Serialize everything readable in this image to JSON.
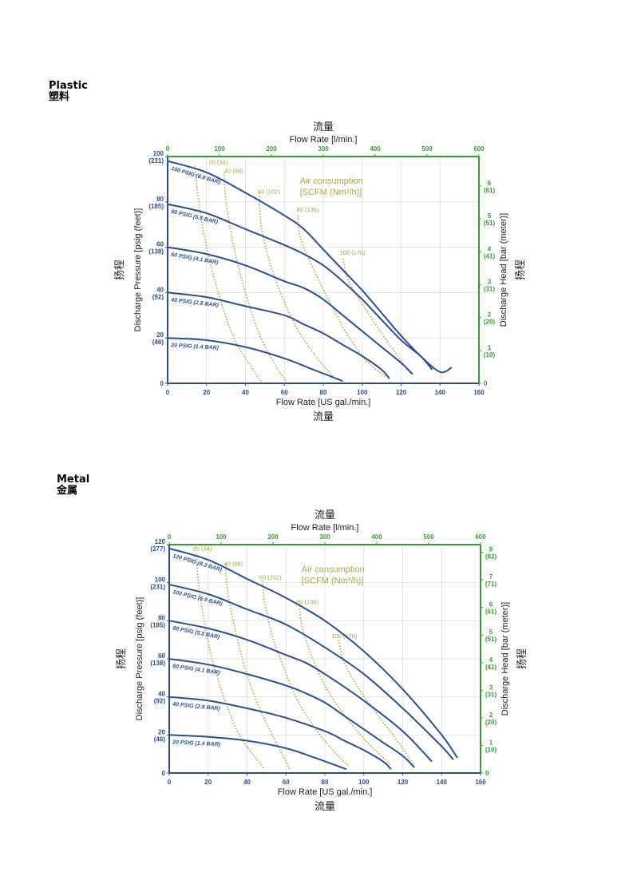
{
  "sections": [
    {
      "title_en": "Plastic",
      "title_zh": "塑料"
    },
    {
      "title_en": "Metal",
      "title_zh": "金属"
    }
  ],
  "colors": {
    "blue": "#2d4f8e",
    "green": "#3a9a3a",
    "olive": "#a8a84a",
    "grid": "#d8d8d8"
  },
  "chart_data": [
    {
      "type": "line",
      "top_label_zh": "流量",
      "top_label": "Flow Rate  [l/min.]",
      "top_ticks": [
        "0",
        "100",
        "200",
        "300",
        "400",
        "500",
        "600"
      ],
      "xlabel": "Flow Rate [US gal./min.]",
      "xlabel_zh": "流量",
      "ylabel": "Discharge Pressure [psig (feet)]",
      "ylabel_zh": "扬程",
      "y2label": "Discharge Head [bar (meter)]",
      "y2label_zh": "扬程",
      "xlim": [
        0,
        160
      ],
      "ylim": [
        0,
        100
      ],
      "x_ticks": [
        "0",
        "20",
        "40",
        "60",
        "80",
        "100",
        "120",
        "140",
        "160"
      ],
      "y_ticks": [
        {
          "v": 0,
          "a": "0",
          "b": ""
        },
        {
          "v": 20,
          "a": "20",
          "b": "(46)"
        },
        {
          "v": 40,
          "a": "40",
          "b": "(92)"
        },
        {
          "v": 60,
          "a": "60",
          "b": "(138)"
        },
        {
          "v": 80,
          "a": "80",
          "b": "(185)"
        },
        {
          "v": 100,
          "a": "100",
          "b": "(231)"
        }
      ],
      "y2_ticks": [
        {
          "v": 0,
          "a": "0",
          "b": ""
        },
        {
          "v": 14.5,
          "a": "1",
          "b": "(10)"
        },
        {
          "v": 29,
          "a": "2",
          "b": "(20)"
        },
        {
          "v": 43.5,
          "a": "3",
          "b": "(31)"
        },
        {
          "v": 58,
          "a": "4",
          "b": "(41)"
        },
        {
          "v": 72.5,
          "a": "5",
          "b": "(51)"
        },
        {
          "v": 87,
          "a": "6",
          "b": "(61)"
        }
      ],
      "air_title": "Air consumption",
      "air_subtitle": "[SCFM (Nm³/h)]",
      "series": [
        {
          "name": "100 PSIG (6.9 BAR)",
          "points": [
            [
              0,
              98
            ],
            [
              20,
              93
            ],
            [
              40,
              84
            ],
            [
              60,
              74
            ],
            [
              70,
              68
            ],
            [
              80,
              59
            ],
            [
              90,
              50
            ],
            [
              100,
              41
            ],
            [
              110,
              31
            ],
            [
              120,
              21
            ],
            [
              130,
              12
            ],
            [
              140,
              5
            ],
            [
              146,
              7
            ]
          ]
        },
        {
          "name": "80 PSIG (5.5 BAR)",
          "points": [
            [
              0,
              79
            ],
            [
              20,
              75
            ],
            [
              40,
              68
            ],
            [
              60,
              61
            ],
            [
              70,
              57
            ],
            [
              80,
              52
            ],
            [
              90,
              45
            ],
            [
              100,
              37
            ],
            [
              110,
              28
            ],
            [
              120,
              19
            ],
            [
              130,
              12
            ],
            [
              136,
              6
            ]
          ]
        },
        {
          "name": "60 PSIG (4.1 BAR)",
          "points": [
            [
              0,
              60
            ],
            [
              20,
              57
            ],
            [
              40,
              52
            ],
            [
              60,
              45
            ],
            [
              70,
              42
            ],
            [
              80,
              37
            ],
            [
              90,
              30
            ],
            [
              100,
              23
            ],
            [
              110,
              16
            ],
            [
              120,
              9
            ],
            [
              126,
              4
            ]
          ]
        },
        {
          "name": "40 PSIG (2.8 BAR)",
          "points": [
            [
              0,
              40
            ],
            [
              20,
              38
            ],
            [
              40,
              34
            ],
            [
              60,
              30
            ],
            [
              70,
              26
            ],
            [
              80,
              22
            ],
            [
              90,
              17
            ],
            [
              100,
              12
            ],
            [
              110,
              6
            ],
            [
              114,
              2
            ]
          ]
        },
        {
          "name": "20 PSIG (1.4 BAR)",
          "points": [
            [
              0,
              20
            ],
            [
              20,
              19
            ],
            [
              40,
              16
            ],
            [
              60,
              11
            ],
            [
              75,
              6
            ],
            [
              90,
              1
            ]
          ]
        }
      ],
      "air_curves": [
        {
          "label": "20 (34)",
          "label_at": [
            26,
            96
          ],
          "points": [
            [
              14,
              96
            ],
            [
              16,
              80
            ],
            [
              20,
              60
            ],
            [
              26,
              40
            ],
            [
              34,
              20
            ],
            [
              44,
              6
            ],
            [
              48,
              1
            ]
          ]
        },
        {
          "label": "40 (68)",
          "label_at": [
            34,
            92
          ],
          "points": [
            [
              29,
              93
            ],
            [
              30,
              80
            ],
            [
              34,
              60
            ],
            [
              40,
              40
            ],
            [
              47,
              22
            ],
            [
              56,
              7
            ],
            [
              61,
              1
            ]
          ]
        },
        {
          "label": "60 (102)",
          "label_at": [
            52,
            83
          ],
          "points": [
            [
              47,
              84
            ],
            [
              48,
              70
            ],
            [
              52,
              55
            ],
            [
              58,
              40
            ],
            [
              66,
              25
            ],
            [
              76,
              12
            ],
            [
              85,
              3
            ]
          ]
        },
        {
          "label": "80 (136)",
          "label_at": [
            72,
            75
          ],
          "points": [
            [
              67,
              74
            ],
            [
              68,
              65
            ],
            [
              74,
              52
            ],
            [
              82,
              38
            ],
            [
              92,
              22
            ],
            [
              102,
              10
            ],
            [
              112,
              3
            ]
          ]
        },
        {
          "label": "100 (170)",
          "label_at": [
            95,
            56
          ],
          "points": [
            [
              90,
              55
            ],
            [
              93,
              45
            ],
            [
              100,
              35
            ],
            [
              110,
              22
            ],
            [
              120,
              10
            ],
            [
              125,
              4
            ]
          ]
        }
      ]
    },
    {
      "type": "line",
      "top_label_zh": "流量",
      "top_label": "Flow Rate  [l/min.]",
      "top_ticks": [
        "0",
        "100",
        "200",
        "300",
        "400",
        "500",
        "600"
      ],
      "xlabel": "Flow Rate [US gal./min.]",
      "xlabel_zh": "流量",
      "ylabel": "Discharge Pressure [psig (feet)]",
      "ylabel_zh": "扬程",
      "y2label": "Discharge Head [bar (meter)]",
      "y2label_zh": "扬程",
      "xlim": [
        0,
        160
      ],
      "ylim": [
        0,
        120
      ],
      "x_ticks": [
        "0",
        "20",
        "40",
        "60",
        "80",
        "100",
        "120",
        "140",
        "160"
      ],
      "y_ticks": [
        {
          "v": 0,
          "a": "0",
          "b": ""
        },
        {
          "v": 20,
          "a": "20",
          "b": "(46)"
        },
        {
          "v": 40,
          "a": "40",
          "b": "(92)"
        },
        {
          "v": 60,
          "a": "60",
          "b": "(138)"
        },
        {
          "v": 80,
          "a": "80",
          "b": "(185)"
        },
        {
          "v": 100,
          "a": "100",
          "b": "(231)"
        },
        {
          "v": 120,
          "a": "120",
          "b": "(277)"
        }
      ],
      "y2_ticks": [
        {
          "v": 0,
          "a": "0",
          "b": ""
        },
        {
          "v": 14.5,
          "a": "1",
          "b": "(10)"
        },
        {
          "v": 29,
          "a": "2",
          "b": "(20)"
        },
        {
          "v": 43.5,
          "a": "3",
          "b": "(31)"
        },
        {
          "v": 58,
          "a": "4",
          "b": "(41)"
        },
        {
          "v": 72.5,
          "a": "5",
          "b": "(51)"
        },
        {
          "v": 87,
          "a": "6",
          "b": "(61)"
        },
        {
          "v": 101.5,
          "a": "7",
          "b": "(71)"
        },
        {
          "v": 116,
          "a": "8",
          "b": "(82)"
        }
      ],
      "air_title": "Air consumption",
      "air_subtitle": "[SCFM (Nm³/h)]",
      "series": [
        {
          "name": "120 PSIG (8.3 BAR)",
          "points": [
            [
              0,
              118
            ],
            [
              20,
              112
            ],
            [
              40,
              102
            ],
            [
              60,
              92
            ],
            [
              80,
              80
            ],
            [
              100,
              64
            ],
            [
              120,
              44
            ],
            [
              140,
              20
            ],
            [
              148,
              8
            ]
          ]
        },
        {
          "name": "100 PSIG (6.9 BAR)",
          "points": [
            [
              0,
              99
            ],
            [
              20,
              94
            ],
            [
              40,
              86
            ],
            [
              60,
              78
            ],
            [
              80,
              66
            ],
            [
              100,
              52
            ],
            [
              120,
              34
            ],
            [
              140,
              14
            ],
            [
              146,
              7
            ]
          ]
        },
        {
          "name": "80 PSIG (5.5 BAR)",
          "points": [
            [
              0,
              80
            ],
            [
              20,
              76
            ],
            [
              40,
              70
            ],
            [
              60,
              62
            ],
            [
              70,
              58
            ],
            [
              80,
              52
            ],
            [
              100,
              38
            ],
            [
              120,
              22
            ],
            [
              135,
              6
            ]
          ]
        },
        {
          "name": "60 PSIG (4.1 BAR)",
          "points": [
            [
              0,
              60
            ],
            [
              20,
              57
            ],
            [
              40,
              52
            ],
            [
              60,
              46
            ],
            [
              70,
              42
            ],
            [
              80,
              37
            ],
            [
              90,
              30
            ],
            [
              100,
              23
            ],
            [
              110,
              16
            ],
            [
              120,
              9
            ],
            [
              126,
              3
            ]
          ]
        },
        {
          "name": "40 PSIG (2.8 BAR)",
          "points": [
            [
              0,
              40
            ],
            [
              20,
              38
            ],
            [
              40,
              34
            ],
            [
              60,
              29
            ],
            [
              80,
              22
            ],
            [
              90,
              17
            ],
            [
              100,
              12
            ],
            [
              110,
              6
            ],
            [
              114,
              2
            ]
          ]
        },
        {
          "name": "20 PSIG (1.4 BAR)",
          "points": [
            [
              0,
              20
            ],
            [
              20,
              19
            ],
            [
              40,
              17
            ],
            [
              60,
              13
            ],
            [
              75,
              8
            ],
            [
              91,
              2
            ]
          ]
        }
      ],
      "air_curves": [
        {
          "label": "20 (34)",
          "label_at": [
            17,
            116
          ],
          "points": [
            [
              14,
              114
            ],
            [
              15,
              100
            ],
            [
              18,
              80
            ],
            [
              22,
              60
            ],
            [
              28,
              40
            ],
            [
              36,
              20
            ],
            [
              46,
              6
            ],
            [
              49,
              2
            ]
          ]
        },
        {
          "label": "40 (68)",
          "label_at": [
            33,
            108
          ],
          "points": [
            [
              29,
              110
            ],
            [
              30,
              95
            ],
            [
              34,
              75
            ],
            [
              39,
              55
            ],
            [
              46,
              35
            ],
            [
              54,
              18
            ],
            [
              60,
              6
            ],
            [
              62,
              2
            ]
          ]
        },
        {
          "label": "60 (102)",
          "label_at": [
            52,
            101
          ],
          "points": [
            [
              48,
              101
            ],
            [
              49,
              90
            ],
            [
              53,
              72
            ],
            [
              59,
              55
            ],
            [
              66,
              38
            ],
            [
              76,
              22
            ],
            [
              86,
              10
            ],
            [
              92,
              4
            ]
          ]
        },
        {
          "label": "80 (136)",
          "label_at": [
            71,
            88
          ],
          "points": [
            [
              67,
              88
            ],
            [
              68,
              78
            ],
            [
              73,
              62
            ],
            [
              80,
              46
            ],
            [
              89,
              32
            ],
            [
              100,
              18
            ],
            [
              108,
              10
            ],
            [
              114,
              4
            ]
          ]
        },
        {
          "label": "100 (170)",
          "label_at": [
            90,
            70
          ],
          "points": [
            [
              87,
              70
            ],
            [
              90,
              58
            ],
            [
              97,
              45
            ],
            [
              106,
              32
            ],
            [
              115,
              20
            ],
            [
              122,
              10
            ],
            [
              126,
              4
            ]
          ]
        }
      ]
    }
  ]
}
